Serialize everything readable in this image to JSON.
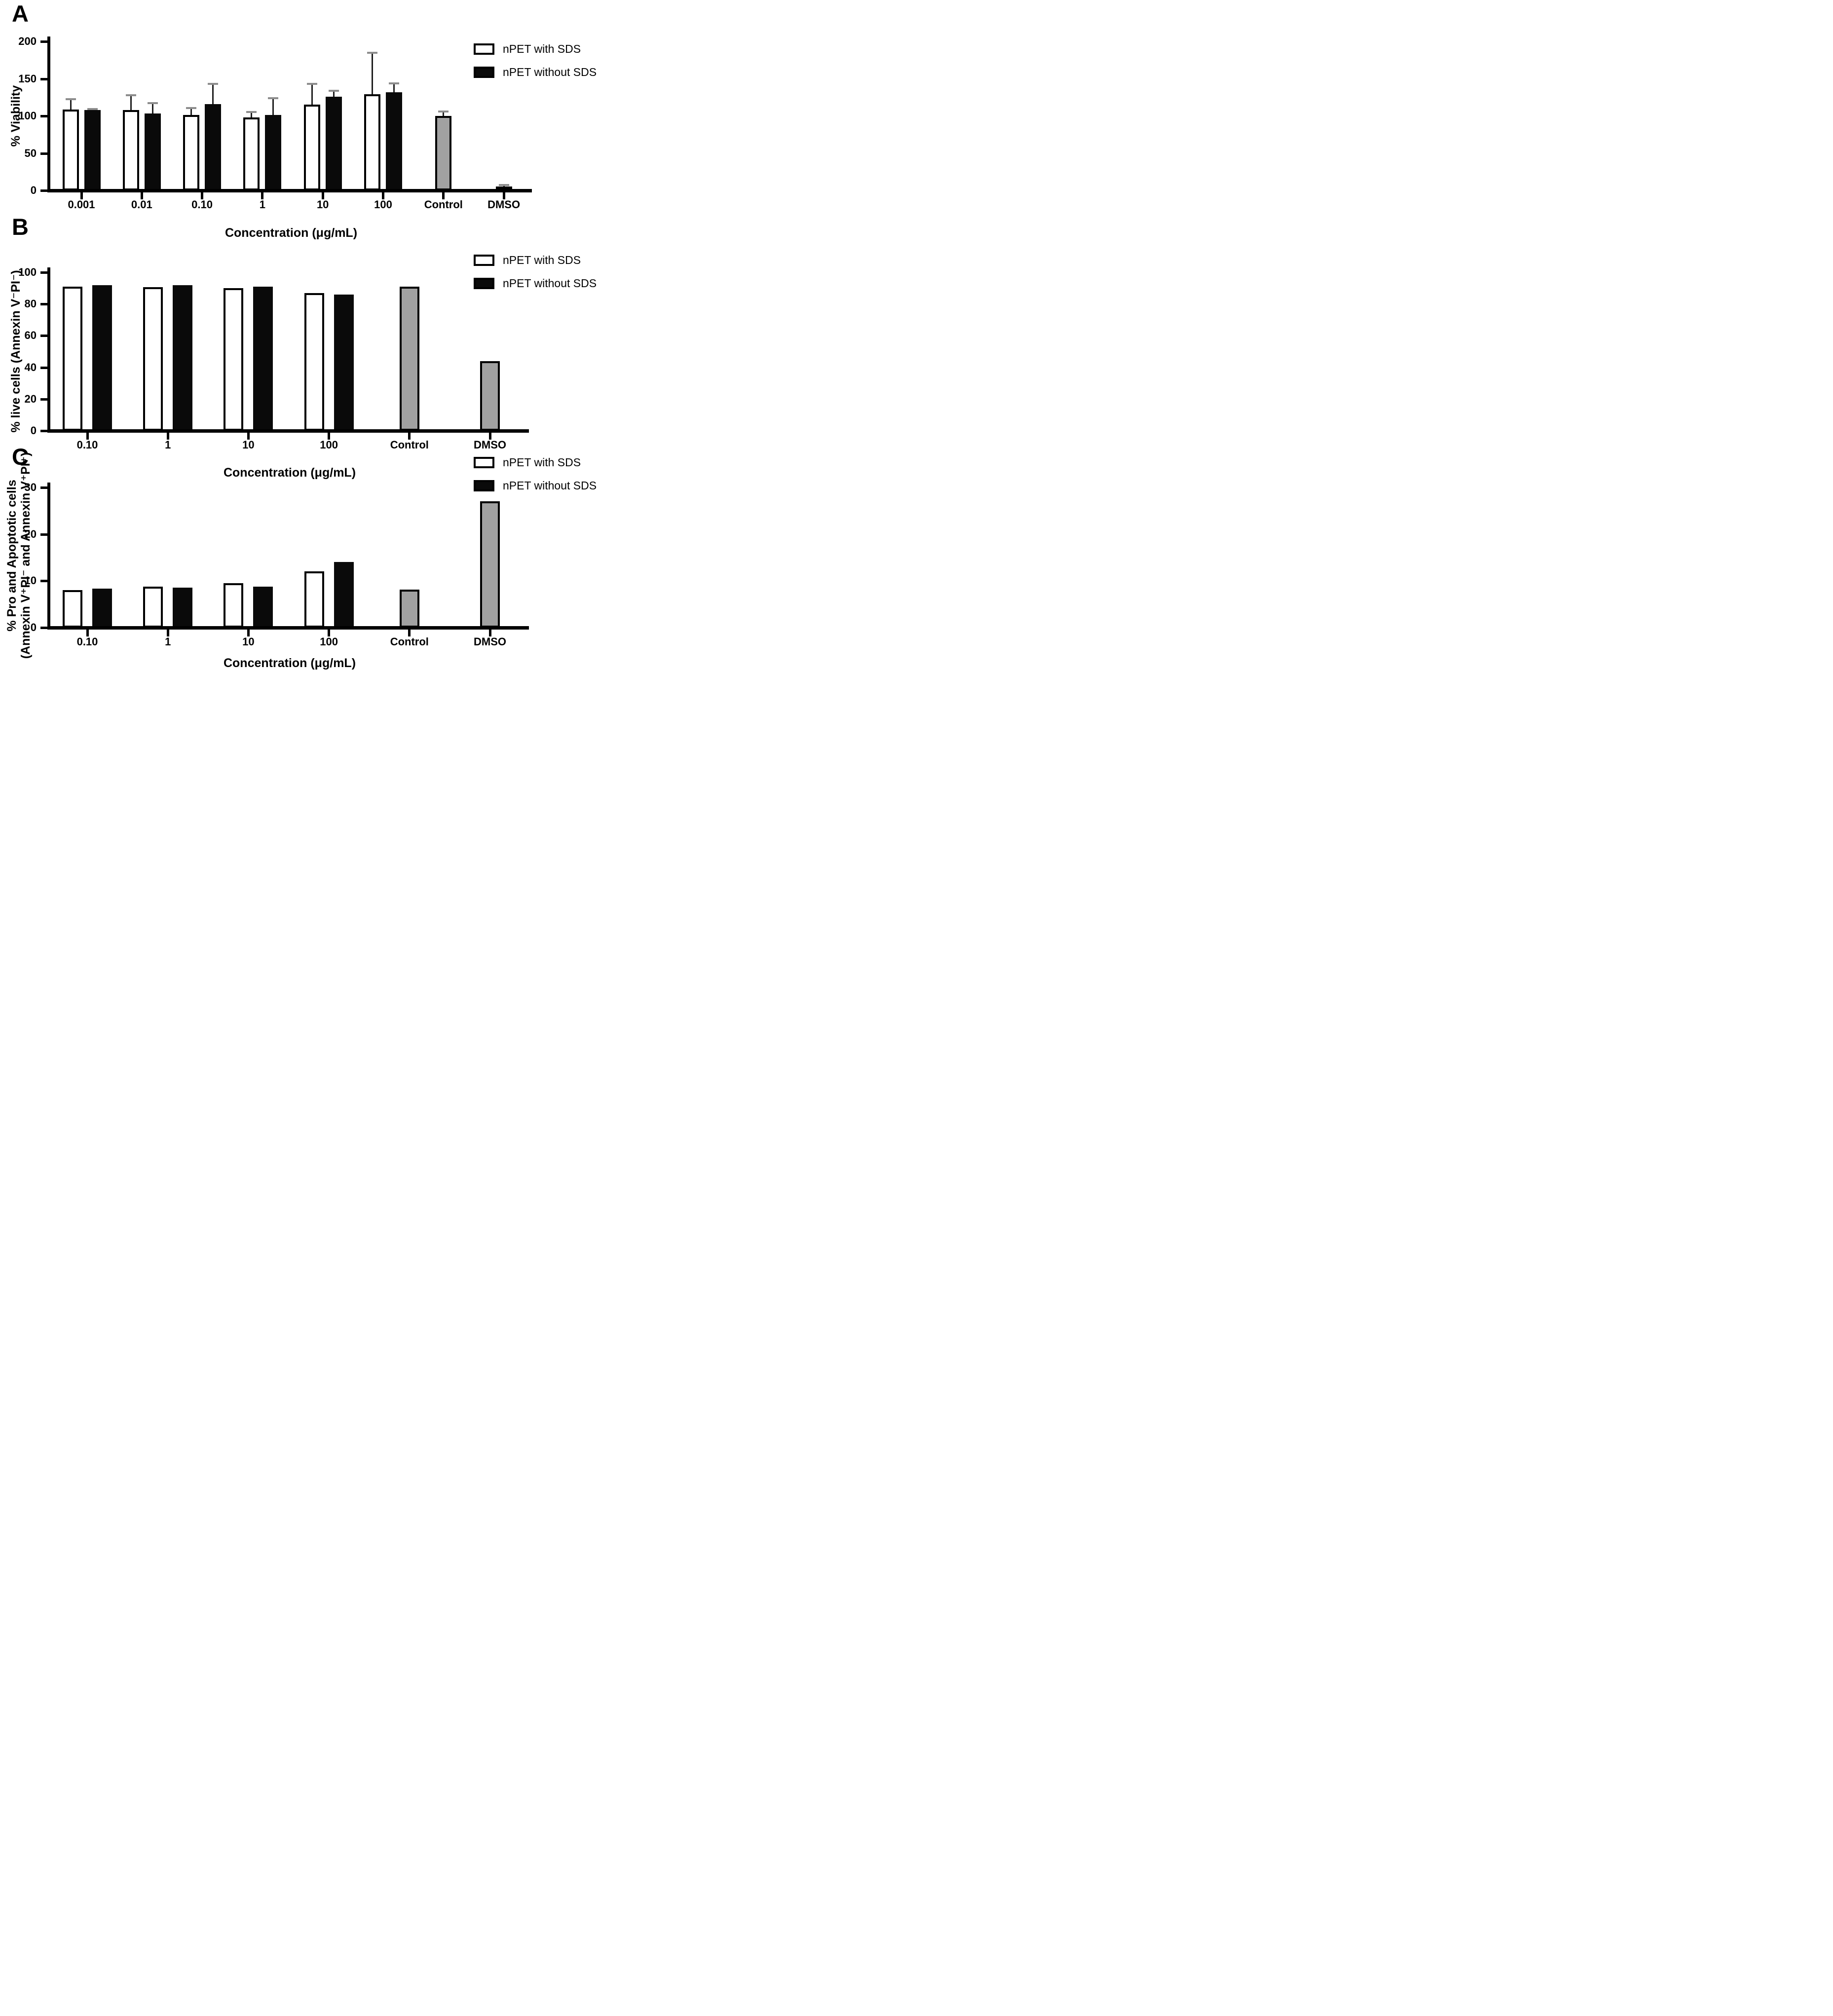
{
  "colors": {
    "bar_white": "#ffffff",
    "bar_black": "#0a0a0a",
    "bar_gray": "#a1a1a1",
    "outline": "#000000",
    "error_line": "#1f1f1f",
    "error_cap": "#8d8d8d",
    "text": "#000000"
  },
  "chart_data": [
    {
      "type": "bar",
      "panel": "A",
      "title": "",
      "xlabel": "Concentration (μg/mL)",
      "ylabel": "% Viability",
      "ylim": [
        0,
        200
      ],
      "yticks": [
        0,
        50,
        100,
        150,
        200
      ],
      "grid": false,
      "legend_position": "top-right",
      "legend": [
        {
          "label": "nPET with SDS",
          "swatch": "white"
        },
        {
          "label": "nPET without SDS",
          "swatch": "black"
        }
      ],
      "categories": [
        "0.001",
        "0.01",
        "0.10",
        "1",
        "10",
        "100",
        "Control",
        "DMSO"
      ],
      "groups": [
        {
          "label": "0.001",
          "bars": [
            {
              "series": "nPET with SDS",
              "value": 108.5,
              "error_plus": 14,
              "fill": "white"
            },
            {
              "series": "nPET without SDS",
              "value": 108,
              "error_plus": 1,
              "fill": "black"
            }
          ]
        },
        {
          "label": "0.01",
          "bars": [
            {
              "series": "nPET with SDS",
              "value": 108,
              "error_plus": 19.5,
              "fill": "white"
            },
            {
              "series": "nPET without SDS",
              "value": 103.5,
              "error_plus": 13.5,
              "fill": "black"
            }
          ]
        },
        {
          "label": "0.10",
          "bars": [
            {
              "series": "nPET with SDS",
              "value": 101,
              "error_plus": 9.5,
              "fill": "white"
            },
            {
              "series": "nPET without SDS",
              "value": 116,
              "error_plus": 27,
              "fill": "black"
            }
          ]
        },
        {
          "label": "1",
          "bars": [
            {
              "series": "nPET with SDS",
              "value": 98,
              "error_plus": 7,
              "fill": "white"
            },
            {
              "series": "nPET without SDS",
              "value": 101,
              "error_plus": 23,
              "fill": "black"
            }
          ]
        },
        {
          "label": "10",
          "bars": [
            {
              "series": "nPET with SDS",
              "value": 115,
              "error_plus": 28,
              "fill": "white"
            },
            {
              "series": "nPET without SDS",
              "value": 125.5,
              "error_plus": 8.5,
              "fill": "black"
            }
          ]
        },
        {
          "label": "100",
          "bars": [
            {
              "series": "nPET with SDS",
              "value": 129,
              "error_plus": 56,
              "fill": "white"
            },
            {
              "series": "nPET without SDS",
              "value": 131.5,
              "error_plus": 12.5,
              "fill": "black"
            }
          ]
        },
        {
          "label": "Control",
          "bars": [
            {
              "series": "Control",
              "value": 100,
              "error_plus": 6,
              "fill": "gray"
            }
          ]
        },
        {
          "label": "DMSO",
          "bars": [
            {
              "series": "DMSO",
              "value": 5,
              "error_plus": 2,
              "fill": "gray"
            }
          ]
        }
      ]
    },
    {
      "type": "bar",
      "panel": "B",
      "title": "",
      "xlabel": "Concentration (μg/mL)",
      "ylabel": "% live cells (Annexin V⁻PI⁻)",
      "ylim": [
        0,
        100
      ],
      "yticks": [
        0,
        20,
        40,
        60,
        80,
        100
      ],
      "grid": false,
      "legend_position": "top-right",
      "legend": [
        {
          "label": "nPET with SDS",
          "swatch": "white"
        },
        {
          "label": "nPET without SDS",
          "swatch": "black"
        }
      ],
      "categories": [
        "0.10",
        "1",
        "10",
        "100",
        "Control",
        "DMSO"
      ],
      "groups": [
        {
          "label": "0.10",
          "bars": [
            {
              "series": "nPET with SDS",
              "value": 91,
              "fill": "white"
            },
            {
              "series": "nPET without SDS",
              "value": 92,
              "fill": "black"
            }
          ]
        },
        {
          "label": "1",
          "bars": [
            {
              "series": "nPET with SDS",
              "value": 90.5,
              "fill": "white"
            },
            {
              "series": "nPET without SDS",
              "value": 92,
              "fill": "black"
            }
          ]
        },
        {
          "label": "10",
          "bars": [
            {
              "series": "nPET with SDS",
              "value": 90,
              "fill": "white"
            },
            {
              "series": "nPET without SDS",
              "value": 91,
              "fill": "black"
            }
          ]
        },
        {
          "label": "100",
          "bars": [
            {
              "series": "nPET with SDS",
              "value": 87,
              "fill": "white"
            },
            {
              "series": "nPET without SDS",
              "value": 86,
              "fill": "black"
            }
          ]
        },
        {
          "label": "Control",
          "bars": [
            {
              "series": "Control",
              "value": 91,
              "fill": "gray"
            }
          ]
        },
        {
          "label": "DMSO",
          "bars": [
            {
              "series": "DMSO",
              "value": 44,
              "fill": "gray"
            }
          ]
        }
      ]
    },
    {
      "type": "bar",
      "panel": "C",
      "title": "",
      "xlabel": "Concentration (μg/mL)",
      "ylabel": "% Pro and Apoptotic cells\n(Annexin V⁺PI⁻ and Annexin V⁺PI⁺)",
      "ylim": [
        0,
        30
      ],
      "yticks": [
        0,
        10,
        20,
        30
      ],
      "grid": false,
      "legend_position": "top-right",
      "legend": [
        {
          "label": "nPET with SDS",
          "swatch": "white"
        },
        {
          "label": "nPET without SDS",
          "swatch": "black"
        }
      ],
      "categories": [
        "0.10",
        "1",
        "10",
        "100",
        "Control",
        "DMSO"
      ],
      "groups": [
        {
          "label": "0.10",
          "bars": [
            {
              "series": "nPET with SDS",
              "value": 8.0,
              "fill": "white"
            },
            {
              "series": "nPET without SDS",
              "value": 8.3,
              "fill": "black"
            }
          ]
        },
        {
          "label": "1",
          "bars": [
            {
              "series": "nPET with SDS",
              "value": 8.8,
              "fill": "white"
            },
            {
              "series": "nPET without SDS",
              "value": 8.6,
              "fill": "black"
            }
          ]
        },
        {
          "label": "10",
          "bars": [
            {
              "series": "nPET with SDS",
              "value": 9.5,
              "fill": "white"
            },
            {
              "series": "nPET without SDS",
              "value": 8.8,
              "fill": "black"
            }
          ]
        },
        {
          "label": "100",
          "bars": [
            {
              "series": "nPET with SDS",
              "value": 12,
              "fill": "white"
            },
            {
              "series": "nPET without SDS",
              "value": 14,
              "fill": "black"
            }
          ]
        },
        {
          "label": "Control",
          "bars": [
            {
              "series": "Control",
              "value": 8.1,
              "fill": "gray"
            }
          ]
        },
        {
          "label": "DMSO",
          "bars": [
            {
              "series": "DMSO",
              "value": 27,
              "fill": "gray"
            }
          ]
        }
      ]
    }
  ]
}
